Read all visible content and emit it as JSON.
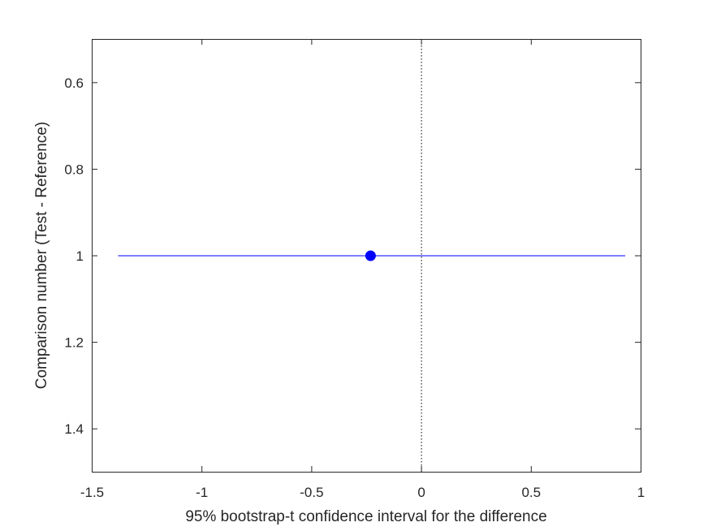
{
  "chart_data": {
    "type": "scatter",
    "title": "",
    "xlabel": "95% bootstrap-t confidence interval for the difference",
    "ylabel": "Comparison number (Test - Reference)",
    "xlim": [
      -1.5,
      1
    ],
    "ylim": [
      0.5,
      1.5
    ],
    "y_reversed": true,
    "x_ticks": [
      {
        "value": -1.5,
        "label": "-1.5"
      },
      {
        "value": -1,
        "label": "-1"
      },
      {
        "value": -0.5,
        "label": "-0.5"
      },
      {
        "value": 0,
        "label": "0"
      },
      {
        "value": 0.5,
        "label": "0.5"
      },
      {
        "value": 1,
        "label": "1"
      }
    ],
    "y_ticks": [
      {
        "value": 0.6,
        "label": "0.6"
      },
      {
        "value": 0.8,
        "label": "0.8"
      },
      {
        "value": 1,
        "label": "1"
      },
      {
        "value": 1.2,
        "label": "1.2"
      },
      {
        "value": 1.4,
        "label": "1.4"
      }
    ],
    "grid": false,
    "reference_line": {
      "x": 0,
      "style": "dotted",
      "color": "#000000"
    },
    "series": [
      {
        "points": [
          {
            "comparison": 1,
            "estimate": -0.23,
            "ci_lower": -1.38,
            "ci_upper": 0.93
          }
        ],
        "color": "#0000ff"
      }
    ]
  }
}
